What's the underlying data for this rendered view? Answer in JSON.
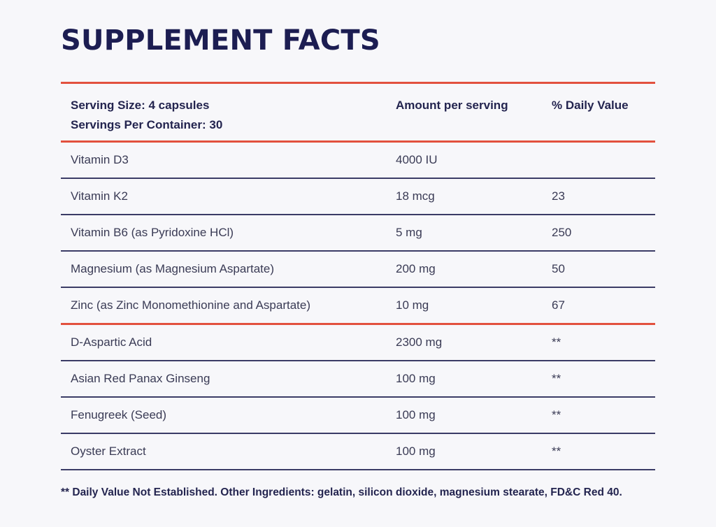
{
  "title": "SUPPLEMENT FACTS",
  "header": {
    "serving_size": "Serving Size: 4 capsules",
    "servings_per_container": "Servings Per Container: 30",
    "amount_col": "Amount per serving",
    "dv_col": "% Daily Value"
  },
  "vitamins": [
    {
      "name": "Vitamin D3",
      "amount": "4000 IU",
      "dv": ""
    },
    {
      "name": "Vitamin K2",
      "amount": "18 mcg",
      "dv": "23"
    },
    {
      "name": "Vitamin B6 (as Pyridoxine HCl)",
      "amount": "5 mg",
      "dv": "250"
    },
    {
      "name": "Magnesium (as Magnesium Aspartate)",
      "amount": "200 mg",
      "dv": "50"
    },
    {
      "name": "Zinc (as Zinc Monomethionine and Aspartate)",
      "amount": "10 mg",
      "dv": "67"
    }
  ],
  "other_ingredients": [
    {
      "name": "D-Aspartic Acid",
      "amount": "2300 mg",
      "dv": "**"
    },
    {
      "name": "Asian Red Panax Ginseng",
      "amount": "100 mg",
      "dv": "**"
    },
    {
      "name": "Fenugreek (Seed)",
      "amount": "100 mg",
      "dv": "**"
    },
    {
      "name": "Oyster Extract",
      "amount": "100 mg",
      "dv": "**"
    }
  ],
  "footnote": "** Daily Value Not Established. Other Ingredients: gelatin, silicon dioxide, magnesium stearate, FD&C Red 40.",
  "colors": {
    "title": "#1c1d52",
    "accent_rule": "#e2513e",
    "row_rule": "#3b3c66",
    "background": "#f7f7fa"
  }
}
